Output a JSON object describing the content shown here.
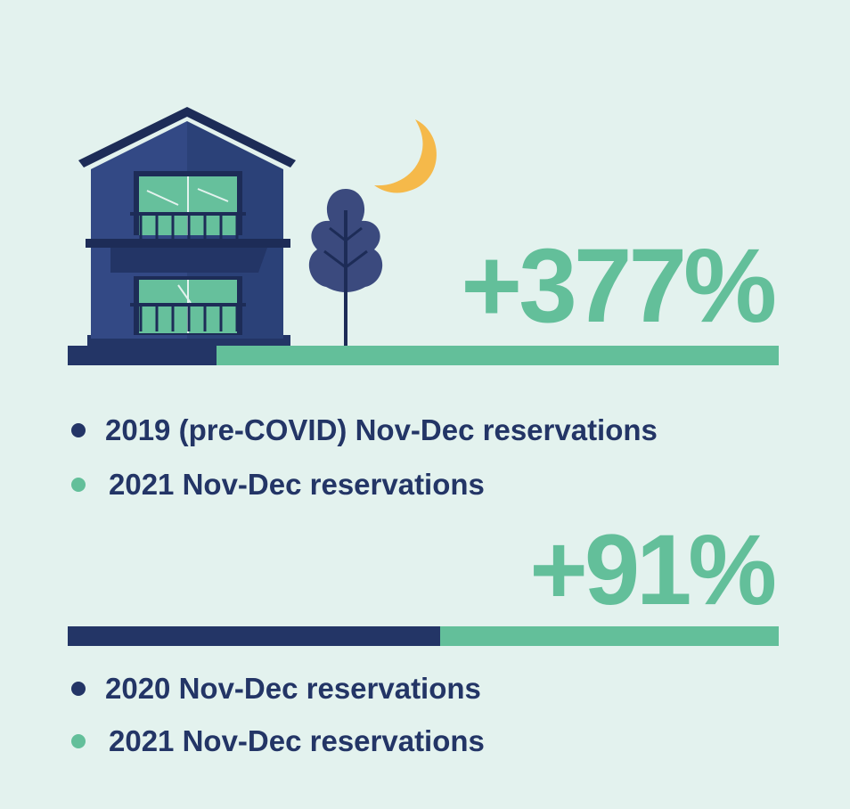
{
  "colors": {
    "background": "#e3f2ee",
    "navy": "#233566",
    "green": "#63bf9a",
    "moon": "#f5b94a",
    "house": "#2b4178",
    "tree": "#3b4a7e"
  },
  "illustration": {
    "icons": [
      "house-icon",
      "tree-icon",
      "moon-icon"
    ]
  },
  "chart_data": [
    {
      "type": "bar",
      "orientation": "horizontal-stacked",
      "headline": "+377%",
      "categories": [
        "2019 (pre-COVID) Nov-Dec reservations",
        "2021 Nov-Dec reservations"
      ],
      "values": [
        1,
        4.77
      ],
      "legend": [
        {
          "label": "2019 (pre-COVID) Nov-Dec reservations",
          "color": "#233566"
        },
        {
          "label": "2021 Nov-Dec reservations",
          "color": "#63bf9a"
        }
      ]
    },
    {
      "type": "bar",
      "orientation": "horizontal-stacked",
      "headline": "+91%",
      "categories": [
        "2020 Nov-Dec reservations",
        "2021 Nov-Dec reservations"
      ],
      "values": [
        1,
        1.91
      ],
      "legend": [
        {
          "label": "2020 Nov-Dec reservations",
          "color": "#233566"
        },
        {
          "label": "2021 Nov-Dec reservations",
          "color": "#63bf9a"
        }
      ]
    }
  ]
}
